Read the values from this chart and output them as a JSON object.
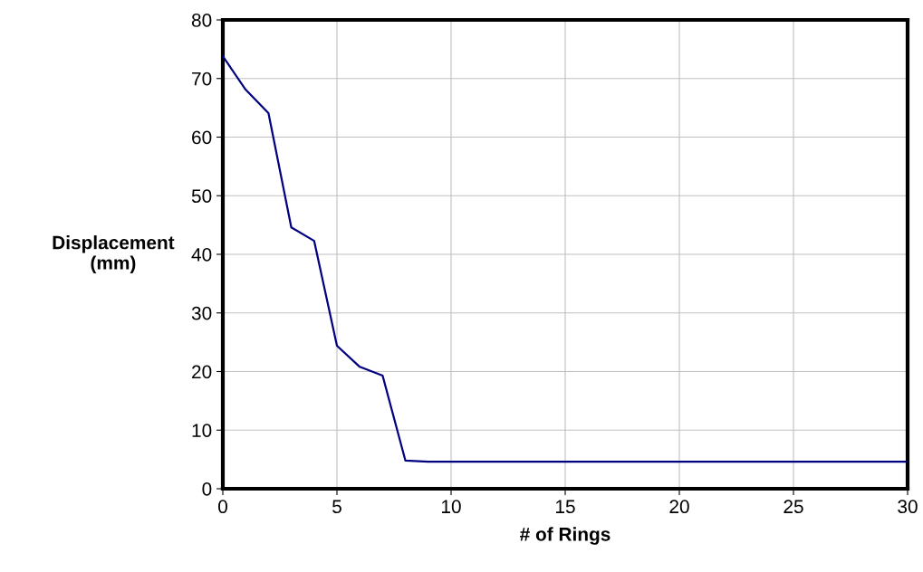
{
  "chart_data": {
    "type": "line",
    "xlabel": "# of Rings",
    "ylabel": "Displacement\n(mm)",
    "x": [
      0,
      1,
      2,
      3,
      4,
      5,
      6,
      7,
      8,
      9,
      30
    ],
    "series": [
      {
        "color": "#000080",
        "values": [
          73.8,
          68.1,
          64.1,
          44.6,
          42.3,
          24.4,
          20.8,
          19.3,
          4.8,
          4.6,
          4.6
        ]
      }
    ],
    "xlim": [
      0,
      30
    ],
    "xticks": [
      0,
      5,
      10,
      15,
      20,
      25,
      30
    ],
    "ylim": [
      0,
      80
    ],
    "yticks": [
      0,
      10,
      20,
      30,
      40,
      50,
      60,
      70,
      80
    ],
    "grid": true,
    "legend": false,
    "marker": "none",
    "line_style": "solid"
  }
}
